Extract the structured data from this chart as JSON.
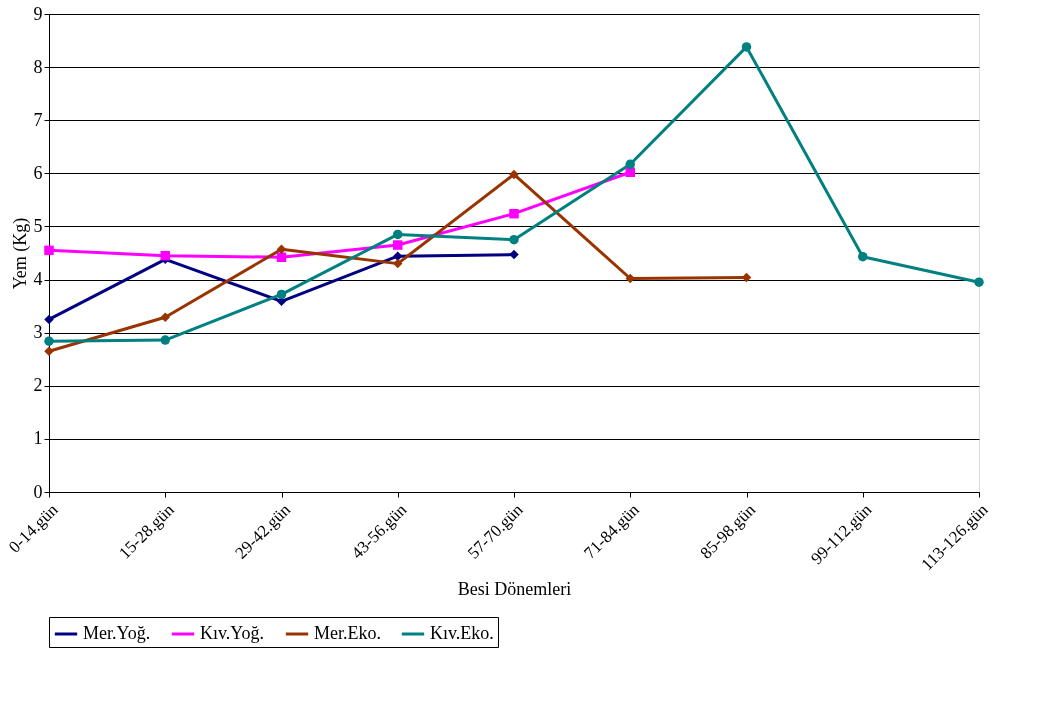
{
  "chart_data": {
    "type": "line",
    "xlabel": "Besi Dönemleri",
    "ylabel": "Yem (Kg)",
    "categories": [
      "0-14.gün",
      "15-28.gün",
      "29-42.gün",
      "43-56.gün",
      "57-70.gün",
      "71-84.gün",
      "85-98.gün",
      "99-112.gün",
      "113-126.gün"
    ],
    "series": [
      {
        "name": "Mer.Yoğ.",
        "color": "#000080",
        "marker": "diamond",
        "values": [
          3.25,
          4.38,
          3.59,
          4.44,
          4.47,
          null,
          null,
          null,
          null
        ]
      },
      {
        "name": "Kıv.Yoğ.",
        "color": "#ff00ff",
        "marker": "square",
        "values": [
          4.55,
          4.45,
          4.42,
          4.65,
          5.24,
          6.02,
          null,
          null,
          null
        ]
      },
      {
        "name": "Mer.Eko.",
        "color": "#993300",
        "marker": "diamond",
        "values": [
          2.65,
          3.29,
          4.57,
          4.3,
          5.98,
          4.02,
          4.04,
          null,
          null
        ]
      },
      {
        "name": "Kıv.Eko.",
        "color": "#008080",
        "marker": "circle",
        "values": [
          2.84,
          2.86,
          3.72,
          4.85,
          4.75,
          6.17,
          8.38,
          4.43,
          3.95
        ]
      }
    ],
    "ylim": [
      0,
      9
    ],
    "yticks": [
      0,
      1,
      2,
      3,
      4,
      5,
      6,
      7,
      8,
      9
    ],
    "grid": "y",
    "legend": "bottom",
    "line_style": "solid"
  }
}
